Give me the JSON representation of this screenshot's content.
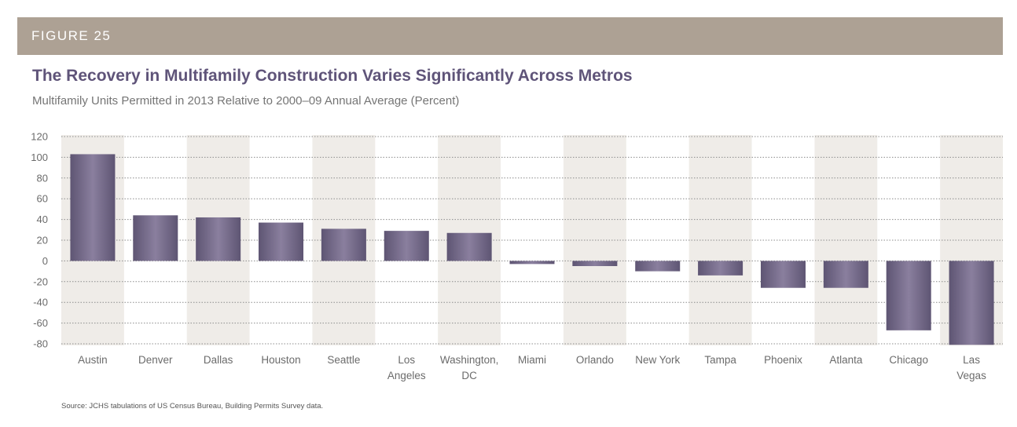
{
  "figure": {
    "label": "FIGURE 25",
    "source": "Source: JCHS tabulations of US Census Bureau, Building Permits Survey data."
  },
  "colors": {
    "header_bar": "#ada194",
    "title": "#5f5479",
    "bar_dark": "#5e5573",
    "bar_light": "#8a7f9e",
    "band": "#efece8"
  },
  "chart_data": {
    "type": "bar",
    "title": "The Recovery in Multifamily Construction Varies Significantly Across Metros",
    "subtitle": "Multifamily Units Permitted in 2013 Relative to 2000–09 Annual Average (Percent)",
    "xlabel": "",
    "ylabel": "",
    "categories": [
      "Austin",
      "Denver",
      "Dallas",
      "Houston",
      "Seattle",
      "Los\nAngeles",
      "Washington,\nDC",
      "Miami",
      "Orlando",
      "New York",
      "Tampa",
      "Phoenix",
      "Atlanta",
      "Chicago",
      "Las\nVegas"
    ],
    "values": [
      103,
      44,
      42,
      37,
      31,
      29,
      27,
      -3,
      -5,
      -10,
      -14,
      -26,
      -26,
      -67,
      -81
    ],
    "ylim": [
      -80,
      120
    ],
    "yticks": [
      120,
      100,
      80,
      60,
      40,
      20,
      0,
      -20,
      -40,
      -60,
      -80
    ],
    "grid": true,
    "alternating_bands": true
  }
}
